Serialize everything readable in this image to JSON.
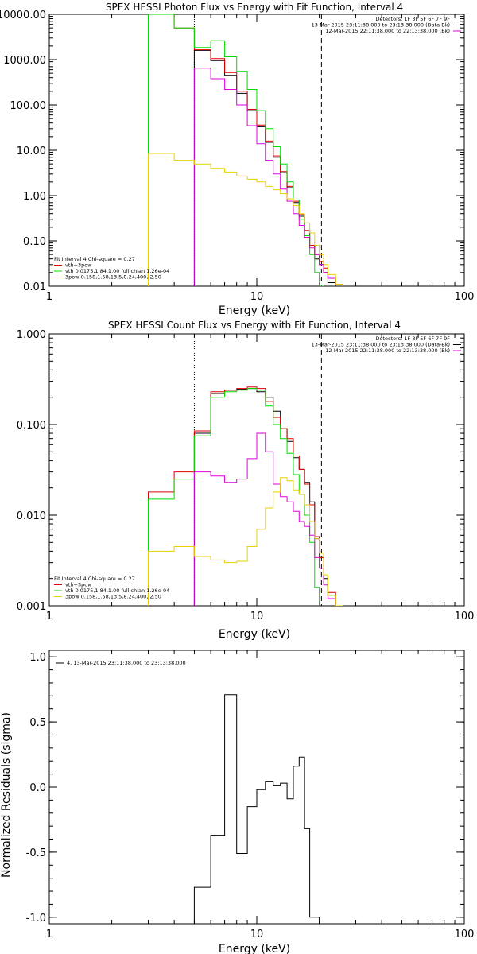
{
  "chart_data": [
    {
      "type": "line",
      "title": "SPEX HESSI Photon Flux vs Energy with Fit Function, Interval 4",
      "xlabel": "Energy (keV)",
      "ylabel": "",
      "xscale": "log",
      "yscale": "log",
      "xlim": [
        1,
        100
      ],
      "ylim": [
        0.01,
        10000
      ],
      "xticks": [
        {
          "v": 1,
          "label": "1"
        },
        {
          "v": 10,
          "label": "10"
        },
        {
          "v": 100,
          "label": "100"
        }
      ],
      "yticks": [
        {
          "v": 0.01,
          "label": "0.01"
        },
        {
          "v": 0.1,
          "label": "0.10"
        },
        {
          "v": 1,
          "label": "1.00"
        },
        {
          "v": 10,
          "label": "10.00"
        },
        {
          "v": 100,
          "label": "100.00"
        },
        {
          "v": 1000,
          "label": "1000.00"
        },
        {
          "v": 10000,
          "label": "10000.00"
        }
      ],
      "bin_edges": [
        3,
        4,
        5,
        6,
        7,
        8,
        9,
        10,
        11,
        12,
        13,
        14,
        15,
        16,
        17,
        18,
        19,
        20,
        21,
        22,
        24,
        26,
        28
      ],
      "vlines": [
        {
          "x": 5,
          "style": "dotted"
        },
        {
          "x": 20.5,
          "style": "dashed"
        }
      ],
      "series": [
        {
          "name": "",
          "color": "#000000",
          "values": [
            null,
            null,
            1600,
            950,
            450,
            180,
            75,
            33,
            15,
            7,
            3.2,
            1.5,
            0.7,
            0.35,
            0.17,
            0.08,
            0.04,
            0.03,
            0.02,
            0.012,
            null,
            null
          ]
        },
        {
          "name": "vth+3pow",
          "color": "#e00000",
          "values": [
            10000,
            5000,
            1650,
            1050,
            520,
            200,
            80,
            36,
            16,
            7.5,
            3.4,
            1.6,
            0.75,
            0.38,
            0.17,
            0.08,
            0.05,
            0.035,
            0.025,
            0.015,
            0.011,
            null
          ]
        },
        {
          "name": "vth 0.0175,1.84,1.00 full chian 1.26e-04",
          "color": "#00dd00",
          "values": [
            10000,
            5000,
            1850,
            2600,
            1150,
            550,
            220,
            75,
            30,
            12,
            5,
            2,
            0.8,
            0.3,
            0.13,
            0.05,
            0.02,
            0.008,
            null,
            null,
            null,
            null
          ]
        },
        {
          "name": "",
          "color": "#dd00dd",
          "values": [
            null,
            null,
            650,
            380,
            220,
            100,
            35,
            14,
            6,
            3,
            1.4,
            0.75,
            0.4,
            0.22,
            0.12,
            0.07,
            0.05,
            0.03,
            0.02,
            0.015,
            0.011,
            null
          ]
        },
        {
          "name": "3pow 0.158,1.58,13.5,8.24,400,,2.50",
          "color": "#e8d000",
          "values": [
            8.5,
            6,
            5,
            4,
            3.3,
            2.7,
            2.3,
            2,
            1.6,
            1.35,
            1.1,
            0.85,
            0.6,
            0.4,
            0.25,
            0.15,
            0.08,
            0.05,
            0.03,
            0.018,
            0.011,
            null
          ]
        }
      ],
      "legend_header": "Fit Interval  4    Chi-square = 0.27",
      "info_lines": [
        {
          "text": "Detectors: 1F 3F 5F 6F 7F 9F",
          "color": "#000000"
        },
        {
          "text": "13-Mar-2015 23:11:38.000 to 23:13:38.000 (Data-Bk)",
          "color": "#000000"
        },
        {
          "text": "12-Mar-2015 22:11:38.000 to 22:13:38.000 (Bk)",
          "color": "#dd00dd"
        }
      ]
    },
    {
      "type": "line",
      "title": "SPEX HESSI Count Flux vs Energy with Fit Function, Interval 4",
      "xlabel": "Energy (keV)",
      "ylabel": "",
      "xscale": "log",
      "yscale": "log",
      "xlim": [
        1,
        100
      ],
      "ylim": [
        0.001,
        1
      ],
      "xticks": [
        {
          "v": 1,
          "label": "1"
        },
        {
          "v": 10,
          "label": "10"
        },
        {
          "v": 100,
          "label": "100"
        }
      ],
      "yticks": [
        {
          "v": 0.001,
          "label": "0.001"
        },
        {
          "v": 0.01,
          "label": "0.010"
        },
        {
          "v": 0.1,
          "label": "0.100"
        },
        {
          "v": 1,
          "label": "1.000"
        }
      ],
      "bin_edges": [
        3,
        4,
        5,
        6,
        7,
        8,
        9,
        10,
        11,
        12,
        13,
        14,
        15,
        16,
        17,
        18,
        19,
        20,
        21,
        22,
        24,
        26,
        28,
        30
      ],
      "vlines": [
        {
          "x": 5,
          "style": "dotted"
        },
        {
          "x": 20.5,
          "style": "dashed"
        }
      ],
      "series": [
        {
          "name": "",
          "color": "#000000",
          "values": [
            null,
            null,
            0.08,
            0.22,
            0.24,
            0.245,
            0.25,
            0.23,
            0.2,
            0.14,
            0.09,
            0.065,
            0.043,
            0.032,
            0.023,
            0.014,
            0.0055,
            0.0034,
            0.002,
            0.0013,
            0.001,
            null,
            null
          ]
        },
        {
          "name": "vth+3pow",
          "color": "#e00000",
          "values": [
            0.018,
            0.03,
            0.085,
            0.23,
            0.24,
            0.25,
            0.26,
            0.25,
            0.18,
            0.12,
            0.09,
            0.07,
            0.045,
            0.032,
            0.022,
            0.013,
            0.0058,
            0.0034,
            0.0022,
            0.0014,
            0.001,
            null,
            null
          ]
        },
        {
          "name": "vth 0.0175,1.84,1.00 full chian 1.26e-04",
          "color": "#00dd00",
          "values": [
            0.015,
            0.025,
            0.075,
            0.2,
            0.23,
            0.24,
            0.25,
            0.24,
            0.16,
            0.1,
            0.07,
            0.048,
            0.028,
            0.017,
            0.01,
            0.005,
            0.0016,
            null,
            null,
            null,
            null,
            null,
            null
          ]
        },
        {
          "name": "",
          "color": "#dd00dd",
          "values": [
            null,
            null,
            0.03,
            0.027,
            0.023,
            0.025,
            0.042,
            0.08,
            0.05,
            0.022,
            0.016,
            0.014,
            0.011,
            0.0085,
            0.0075,
            0.006,
            0.0034,
            0.0026,
            0.0017,
            0.0012,
            0.001,
            null,
            null
          ]
        },
        {
          "name": "3pow 0.158,1.58,13.5,8.24,400,,2.50",
          "color": "#e8d000",
          "values": [
            0.004,
            0.0045,
            0.0035,
            0.0032,
            0.003,
            0.0031,
            0.0045,
            0.007,
            0.012,
            0.018,
            0.026,
            0.024,
            0.019,
            0.017,
            0.013,
            0.0085,
            0.0055,
            0.0038,
            0.0022,
            0.0013,
            0.001,
            null,
            null
          ]
        }
      ],
      "legend_header": "Fit Interval  4    Chi-square = 0.27",
      "info_lines": [
        {
          "text": "Detectors: 1F 3F 5F 6F 7F 9F",
          "color": "#000000"
        },
        {
          "text": "13-Mar-2015 23:11:38.000 to 23:13:38.000 (Data-Bk)",
          "color": "#000000"
        },
        {
          "text": "12-Mar-2015 22:11:38.000 to 22:13:38.000 (Bk)",
          "color": "#dd00dd"
        }
      ]
    },
    {
      "type": "line",
      "title": "",
      "xlabel": "Energy (keV)",
      "ylabel": "Normalized Residuals (sigma)",
      "xscale": "log",
      "yscale": "linear",
      "xlim": [
        1,
        100
      ],
      "ylim": [
        -1.05,
        1.05
      ],
      "xticks": [
        {
          "v": 1,
          "label": "1"
        },
        {
          "v": 10,
          "label": "10"
        },
        {
          "v": 100,
          "label": "100"
        }
      ],
      "yticks": [
        {
          "v": -1,
          "label": "-1.0"
        },
        {
          "v": -0.5,
          "label": "-0.5"
        },
        {
          "v": 0,
          "label": "0.0"
        },
        {
          "v": 0.5,
          "label": "0.5"
        },
        {
          "v": 1,
          "label": "1.0"
        }
      ],
      "bin_edges": [
        5,
        6,
        7,
        8,
        9,
        10,
        11,
        12,
        13,
        14,
        15,
        16,
        17,
        18,
        19,
        20
      ],
      "series": [
        {
          "name": "4, 13-Mar-2015 23:11:38.000 to 23:13:38.000",
          "color": "#000000",
          "values": [
            -0.77,
            -0.37,
            0.71,
            -0.51,
            -0.15,
            -0.02,
            0.04,
            0.01,
            0.03,
            -0.09,
            0.16,
            0.23,
            -0.32,
            -1.0,
            -1.0
          ]
        }
      ],
      "legend_header": "",
      "info_lines": []
    }
  ]
}
